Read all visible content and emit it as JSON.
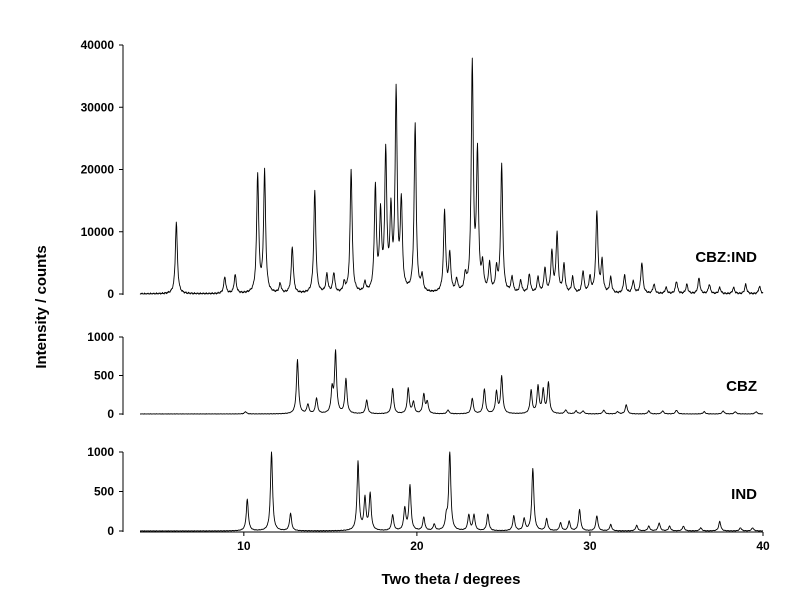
{
  "chart_data": {
    "type": "line",
    "xlabel": "Two theta / degrees",
    "ylabel": "Intensity / counts",
    "xlim": [
      4,
      40
    ],
    "x_ticks": [
      10,
      20,
      30,
      40
    ],
    "panels": [
      {
        "name": "CBZ:IND",
        "ylim": [
          0,
          40000
        ],
        "y_ticks": [
          0,
          10000,
          20000,
          30000,
          40000
        ],
        "baseline": 0,
        "peaks": [
          [
            6.1,
            11500
          ],
          [
            8.9,
            2700
          ],
          [
            9.5,
            3000
          ],
          [
            10.8,
            19000
          ],
          [
            11.2,
            19500
          ],
          [
            12.1,
            1500
          ],
          [
            12.8,
            7500
          ],
          [
            14.1,
            16500
          ],
          [
            14.8,
            3000
          ],
          [
            15.2,
            3200
          ],
          [
            15.8,
            1500
          ],
          [
            16.2,
            19800
          ],
          [
            17.0,
            1500
          ],
          [
            17.6,
            16800
          ],
          [
            17.9,
            12000
          ],
          [
            18.2,
            22000
          ],
          [
            18.5,
            12000
          ],
          [
            18.8,
            31700
          ],
          [
            19.1,
            14000
          ],
          [
            19.9,
            27000
          ],
          [
            20.3,
            2500
          ],
          [
            21.6,
            13000
          ],
          [
            21.9,
            6000
          ],
          [
            22.3,
            2000
          ],
          [
            22.8,
            2500
          ],
          [
            23.2,
            36500
          ],
          [
            23.5,
            22000
          ],
          [
            23.8,
            4000
          ],
          [
            24.2,
            4500
          ],
          [
            24.6,
            3500
          ],
          [
            24.9,
            20500
          ],
          [
            25.5,
            2500
          ],
          [
            26.0,
            2000
          ],
          [
            26.5,
            3000
          ],
          [
            27.0,
            2500
          ],
          [
            27.4,
            4000
          ],
          [
            27.8,
            6500
          ],
          [
            28.1,
            9500
          ],
          [
            28.5,
            4500
          ],
          [
            29.0,
            2500
          ],
          [
            29.6,
            3500
          ],
          [
            30.0,
            2500
          ],
          [
            30.4,
            13000
          ],
          [
            30.7,
            5000
          ],
          [
            31.2,
            2500
          ],
          [
            32.0,
            3000
          ],
          [
            32.5,
            2000
          ],
          [
            33.0,
            5000
          ],
          [
            33.7,
            1500
          ],
          [
            34.4,
            1000
          ],
          [
            35.0,
            2000
          ],
          [
            35.6,
            1500
          ],
          [
            36.3,
            2500
          ],
          [
            36.9,
            1500
          ],
          [
            37.5,
            1000
          ],
          [
            38.3,
            1000
          ],
          [
            39.0,
            1500
          ],
          [
            39.8,
            1200
          ]
        ]
      },
      {
        "name": "CBZ",
        "ylim": [
          0,
          1000
        ],
        "y_ticks": [
          0,
          500,
          1000
        ],
        "baseline": 0,
        "peaks": [
          [
            10.1,
            30
          ],
          [
            13.1,
            700
          ],
          [
            13.7,
            120
          ],
          [
            14.2,
            200
          ],
          [
            15.1,
            300
          ],
          [
            15.3,
            790
          ],
          [
            15.9,
            450
          ],
          [
            17.1,
            180
          ],
          [
            18.6,
            330
          ],
          [
            19.5,
            330
          ],
          [
            19.8,
            150
          ],
          [
            20.4,
            250
          ],
          [
            20.6,
            150
          ],
          [
            21.8,
            50
          ],
          [
            23.2,
            200
          ],
          [
            23.9,
            320
          ],
          [
            24.6,
            280
          ],
          [
            24.9,
            480
          ],
          [
            26.6,
            300
          ],
          [
            27.0,
            350
          ],
          [
            27.3,
            300
          ],
          [
            27.6,
            400
          ],
          [
            28.6,
            50
          ],
          [
            29.2,
            40
          ],
          [
            29.6,
            40
          ],
          [
            30.8,
            50
          ],
          [
            31.6,
            30
          ],
          [
            32.1,
            120
          ],
          [
            33.4,
            40
          ],
          [
            34.2,
            40
          ],
          [
            35.0,
            50
          ],
          [
            36.6,
            30
          ],
          [
            37.7,
            40
          ],
          [
            38.4,
            30
          ],
          [
            39.6,
            30
          ]
        ]
      },
      {
        "name": "IND",
        "ylim": [
          0,
          1000
        ],
        "y_ticks": [
          0,
          500,
          1000
        ],
        "baseline": 0,
        "peaks": [
          [
            10.2,
            400
          ],
          [
            11.6,
            1000
          ],
          [
            12.7,
            220
          ],
          [
            16.6,
            870
          ],
          [
            17.0,
            400
          ],
          [
            17.3,
            460
          ],
          [
            18.6,
            200
          ],
          [
            19.3,
            280
          ],
          [
            19.6,
            570
          ],
          [
            20.4,
            170
          ],
          [
            21.0,
            80
          ],
          [
            21.7,
            150
          ],
          [
            21.9,
            1000
          ],
          [
            23.0,
            200
          ],
          [
            23.3,
            200
          ],
          [
            24.1,
            210
          ],
          [
            25.6,
            190
          ],
          [
            26.2,
            150
          ],
          [
            26.7,
            790
          ],
          [
            27.5,
            150
          ],
          [
            28.3,
            100
          ],
          [
            28.8,
            120
          ],
          [
            29.4,
            270
          ],
          [
            30.4,
            190
          ],
          [
            31.2,
            80
          ],
          [
            32.7,
            70
          ],
          [
            33.4,
            60
          ],
          [
            34.0,
            100
          ],
          [
            34.6,
            60
          ],
          [
            35.4,
            60
          ],
          [
            36.4,
            40
          ],
          [
            37.5,
            120
          ],
          [
            38.7,
            40
          ],
          [
            39.4,
            40
          ]
        ]
      }
    ]
  }
}
